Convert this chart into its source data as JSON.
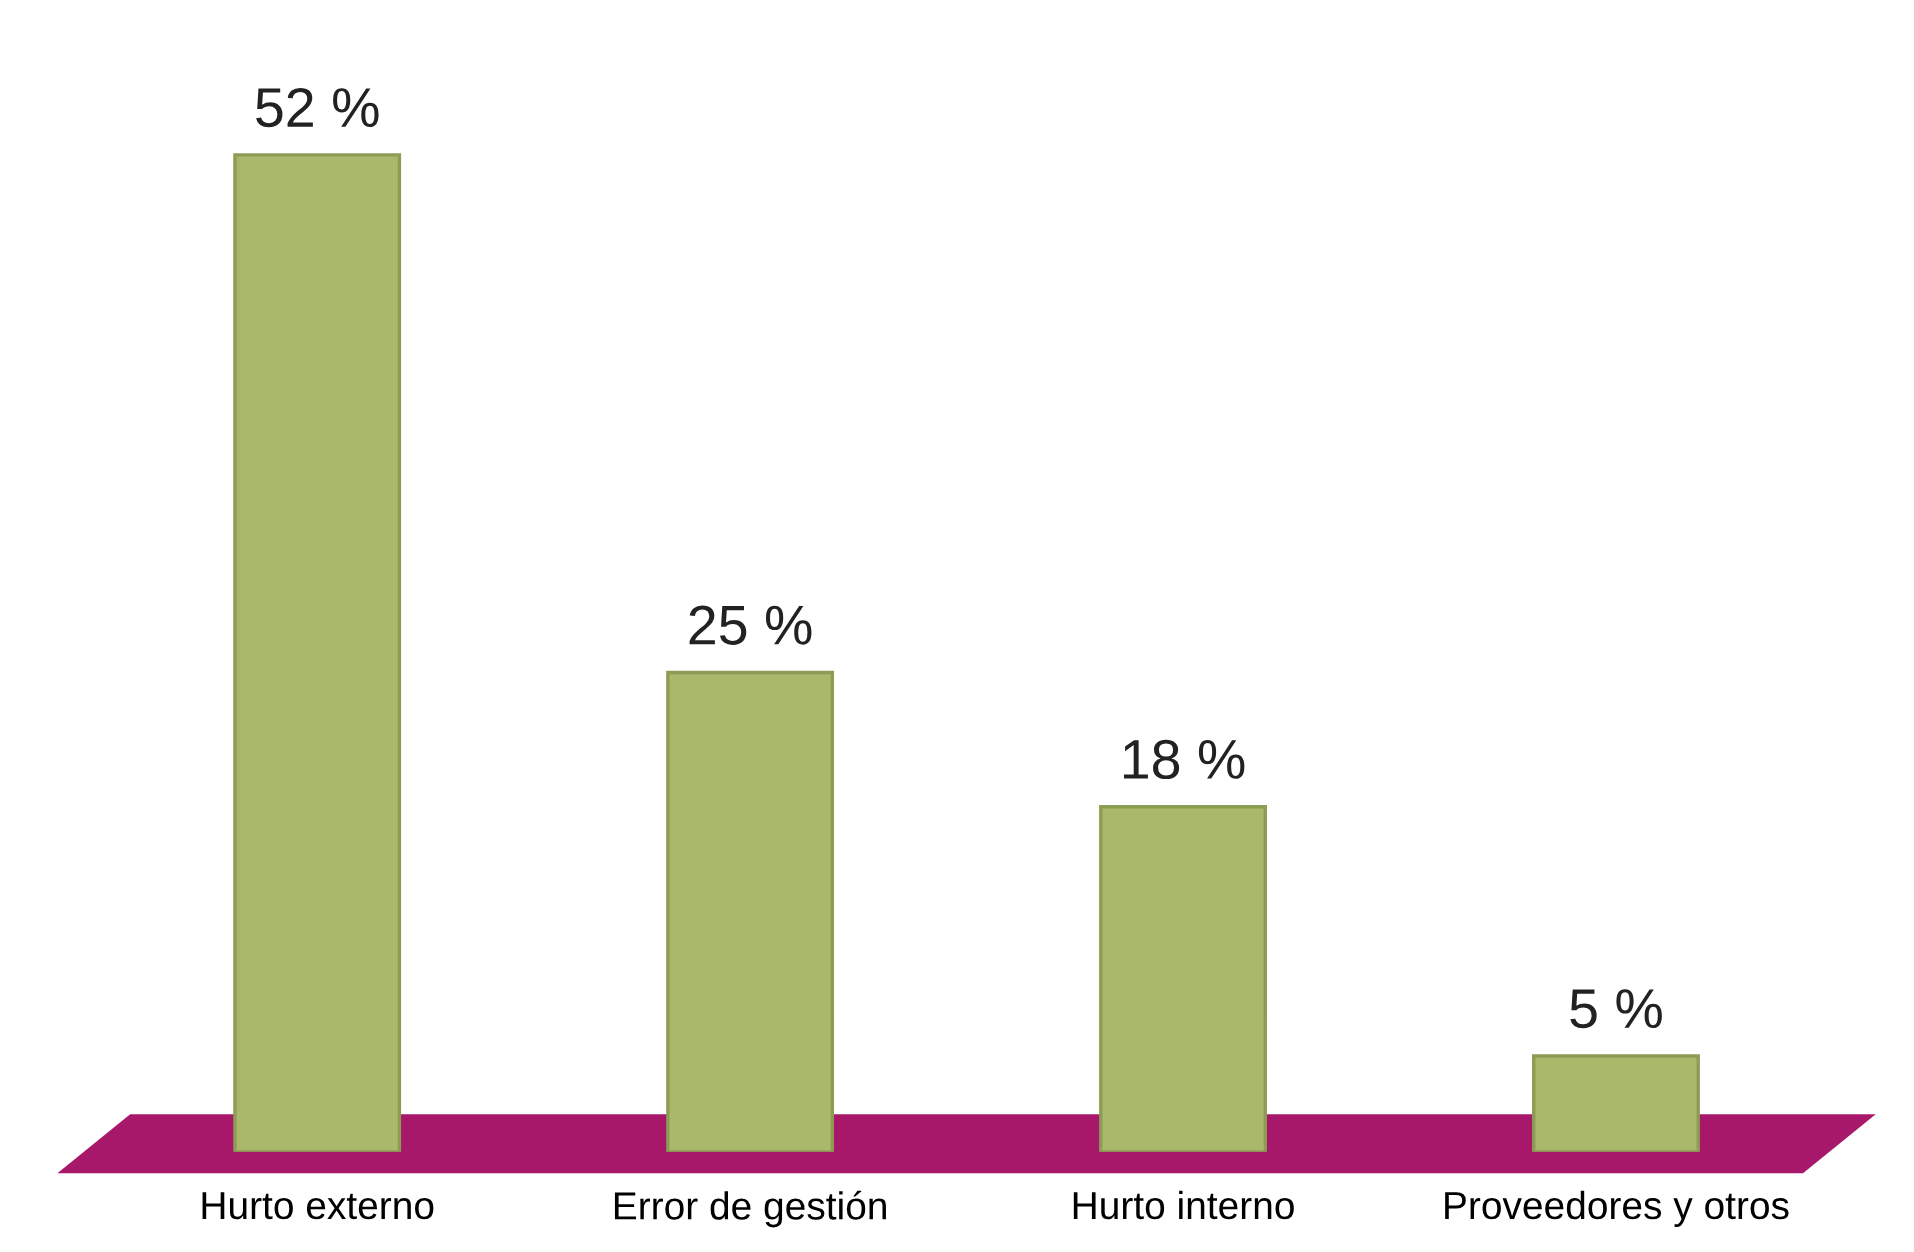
{
  "chart_data": {
    "type": "bar",
    "categories": [
      "Hurto externo",
      "Error de gestión",
      "Hurto interno",
      "Proveedores y otros"
    ],
    "values": [
      52,
      25,
      18,
      5
    ],
    "value_labels": [
      "52 %",
      "25 %",
      "18 %",
      "5 %"
    ],
    "color": "#a9b86a"
  }
}
